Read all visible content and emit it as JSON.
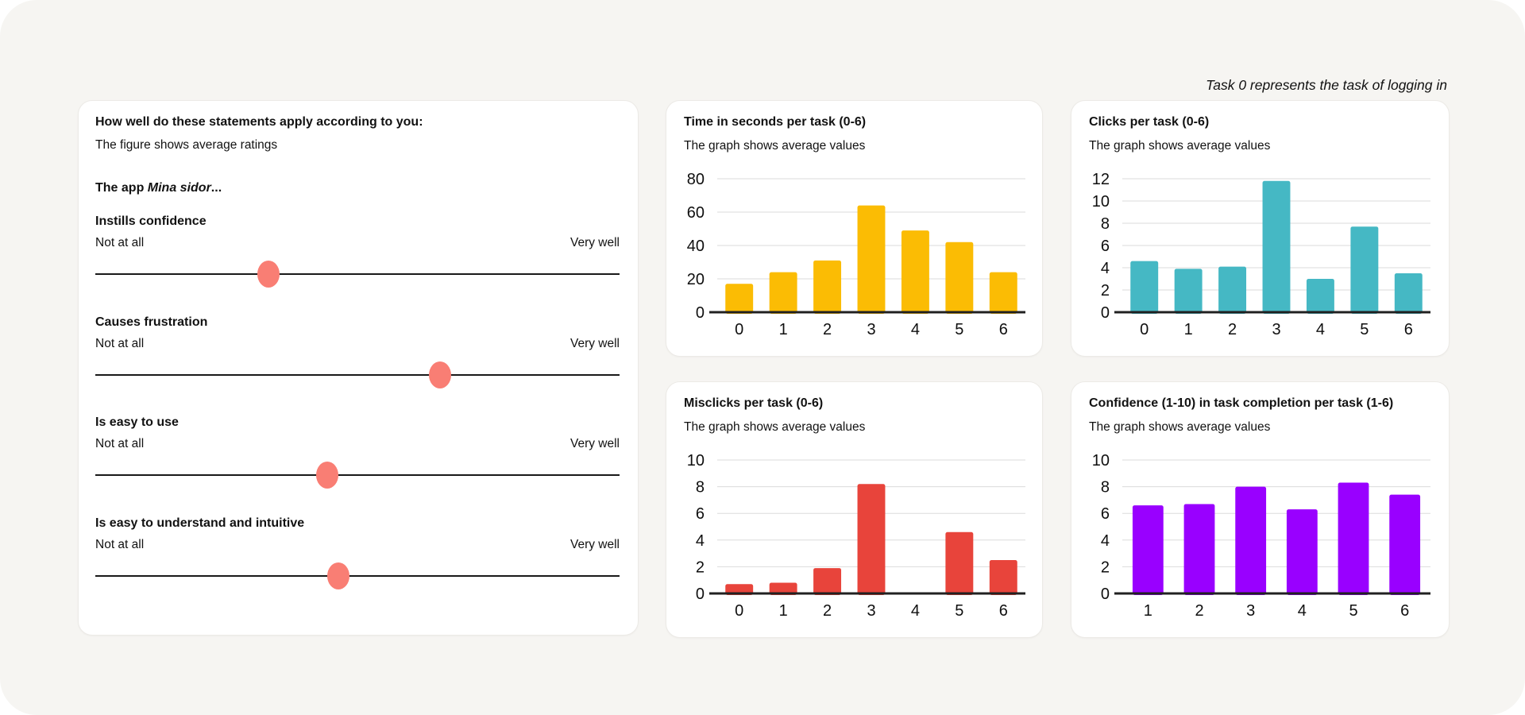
{
  "page": {
    "note": "Task 0 represents the task of logging in"
  },
  "survey": {
    "title": "How well do these statements apply according to you:",
    "subtitle": "The figure shows average ratings",
    "app_statement_prefix": "The app ",
    "app_name": "Mina sidor",
    "app_statement_suffix": "...",
    "scale_min_label": "Not at all",
    "scale_max_label": "Very well",
    "dot_color": "#F97E74",
    "items": [
      {
        "label": "Instills confidence",
        "value_pct": 33.0
      },
      {
        "label": "Causes frustration",
        "value_pct": 65.7
      },
      {
        "label": "Is easy to use",
        "value_pct": 44.3
      },
      {
        "label": "Is easy to understand and intuitive",
        "value_pct": 46.4
      }
    ]
  },
  "chart_data": [
    {
      "type": "bar",
      "title": "Time in seconds per task (0-6)",
      "subtitle": "The graph shows average values",
      "categories": [
        "0",
        "1",
        "2",
        "3",
        "4",
        "5",
        "6"
      ],
      "values": [
        17,
        24,
        31,
        64,
        49,
        42,
        24
      ],
      "xlabel": "",
      "ylabel": "",
      "ylim": [
        0,
        80
      ],
      "ytick_step": 20,
      "grid": true,
      "legend": "none",
      "color": "#FBBC04"
    },
    {
      "type": "bar",
      "title": "Clicks per task (0-6)",
      "subtitle": "The graph shows average values",
      "categories": [
        "0",
        "1",
        "2",
        "3",
        "4",
        "5",
        "6"
      ],
      "values": [
        4.6,
        3.9,
        4.1,
        11.8,
        3.0,
        7.7,
        3.5
      ],
      "xlabel": "",
      "ylabel": "",
      "ylim": [
        0,
        12
      ],
      "ytick_step": 2,
      "grid": true,
      "legend": "none",
      "color": "#45B8C4"
    },
    {
      "type": "bar",
      "title": "Misclicks per task (0-6)",
      "subtitle": "The graph shows average values",
      "categories": [
        "0",
        "1",
        "2",
        "3",
        "4",
        "5",
        "6"
      ],
      "values": [
        0.7,
        0.8,
        1.9,
        8.2,
        0,
        4.6,
        2.5
      ],
      "xlabel": "",
      "ylabel": "",
      "ylim": [
        0,
        10
      ],
      "ytick_step": 2,
      "grid": true,
      "legend": "none",
      "color": "#E8443B"
    },
    {
      "type": "bar",
      "title": "Confidence (1-10) in task completion per task (1-6)",
      "subtitle": "The graph shows average values",
      "categories": [
        "1",
        "2",
        "3",
        "4",
        "5",
        "6"
      ],
      "values": [
        6.6,
        6.7,
        8.0,
        6.3,
        8.3,
        7.4
      ],
      "xlabel": "",
      "ylabel": "",
      "ylim": [
        0,
        10
      ],
      "ytick_step": 2,
      "grid": true,
      "legend": "none",
      "color": "#9900FF"
    }
  ]
}
